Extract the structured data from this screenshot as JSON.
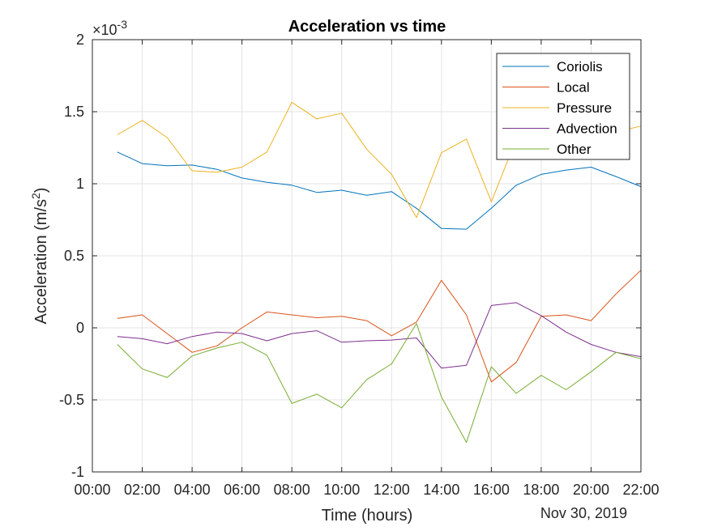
{
  "chart_data": {
    "type": "line",
    "title": "Acceleration vs time",
    "xlabel": "Time (hours)",
    "ylabel_main": "Acceleration (m/s",
    "ylabel_sup": "2",
    "ylabel_end": ")",
    "exponent_base": "×10",
    "exponent_power": "-3",
    "date_label": "Nov 30, 2019",
    "xlim": [
      0,
      22
    ],
    "ylim": [
      -1,
      2
    ],
    "x_ticks": [
      0,
      2,
      4,
      6,
      8,
      10,
      12,
      14,
      16,
      18,
      20,
      22
    ],
    "x_tick_labels": [
      "00:00",
      "02:00",
      "04:00",
      "06:00",
      "08:00",
      "10:00",
      "12:00",
      "14:00",
      "16:00",
      "18:00",
      "20:00",
      "22:00"
    ],
    "y_ticks": [
      -1,
      -0.5,
      0,
      0.5,
      1,
      1.5,
      2
    ],
    "y_tick_labels": [
      "-1",
      "-0.5",
      "0",
      "0.5",
      "1",
      "1.5",
      "2"
    ],
    "grid": true,
    "legend_position": "top-right",
    "x": [
      1,
      2,
      3,
      4,
      5,
      6,
      7,
      8,
      9,
      10,
      11,
      12,
      13,
      14,
      15,
      16,
      17,
      18,
      19,
      20,
      21,
      22
    ],
    "series": [
      {
        "name": "Coriolis",
        "color": "#0072BD",
        "values": [
          1.22,
          1.14,
          1.125,
          1.13,
          1.1,
          1.04,
          1.01,
          0.99,
          0.94,
          0.955,
          0.92,
          0.945,
          0.83,
          0.69,
          0.685,
          0.83,
          0.99,
          1.065,
          1.095,
          1.115,
          1.05,
          0.98
        ]
      },
      {
        "name": "Local",
        "color": "#D95319",
        "values": [
          0.065,
          0.09,
          -0.04,
          -0.17,
          -0.125,
          0.0,
          0.11,
          0.09,
          0.07,
          0.08,
          0.05,
          -0.055,
          0.04,
          0.33,
          0.09,
          -0.375,
          -0.24,
          0.08,
          0.09,
          0.05,
          0.235,
          0.4
        ]
      },
      {
        "name": "Pressure",
        "color": "#EDB120",
        "values": [
          1.34,
          1.44,
          1.32,
          1.09,
          1.08,
          1.115,
          1.22,
          1.565,
          1.45,
          1.49,
          1.24,
          1.065,
          0.765,
          1.215,
          1.31,
          0.875,
          1.31,
          1.33,
          1.34,
          1.35,
          1.36,
          1.4
        ]
      },
      {
        "name": "Advection",
        "color": "#7E2F8E",
        "values": [
          -0.06,
          -0.075,
          -0.11,
          -0.06,
          -0.03,
          -0.04,
          -0.09,
          -0.04,
          -0.02,
          -0.1,
          -0.09,
          -0.085,
          -0.07,
          -0.28,
          -0.26,
          0.155,
          0.175,
          0.085,
          -0.03,
          -0.115,
          -0.17,
          -0.2
        ]
      },
      {
        "name": "Other",
        "color": "#77AC30",
        "values": [
          -0.115,
          -0.285,
          -0.345,
          -0.195,
          -0.14,
          -0.1,
          -0.19,
          -0.525,
          -0.46,
          -0.555,
          -0.36,
          -0.25,
          0.03,
          -0.48,
          -0.795,
          -0.27,
          -0.455,
          -0.33,
          -0.43,
          -0.305,
          -0.17,
          -0.215
        ]
      }
    ]
  }
}
